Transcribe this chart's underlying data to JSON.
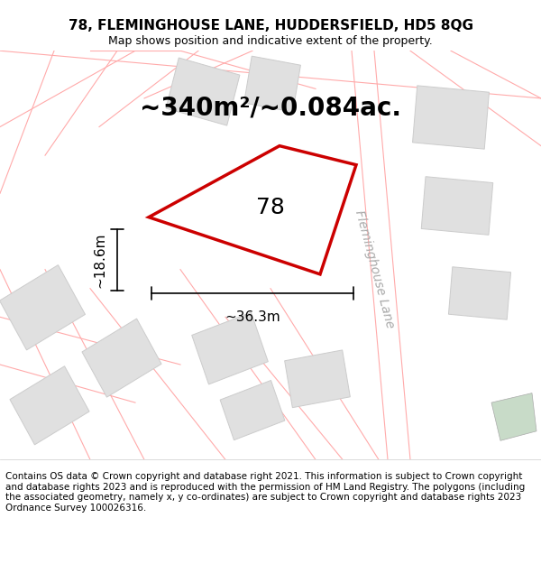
{
  "title_line1": "78, FLEMINGHOUSE LANE, HUDDERSFIELD, HD5 8QG",
  "title_line2": "Map shows position and indicative extent of the property.",
  "area_text": "~340m²/~0.084ac.",
  "label_78": "78",
  "dim_width": "~36.3m",
  "dim_height": "~18.6m",
  "road_label": "Fleminghouse Lane",
  "footer_text": "Contains OS data © Crown copyright and database right 2021. This information is subject to Crown copyright and database rights 2023 and is reproduced with the permission of HM Land Registry. The polygons (including the associated geometry, namely x, y co-ordinates) are subject to Crown copyright and database rights 2023 Ordnance Survey 100026316.",
  "bg_color": "#ffffff",
  "map_bg": "#ffffff",
  "property_fill": "#ffffff",
  "property_edge": "#cc0000",
  "building_fill": "#e0e0e0",
  "building_edge": "#cccccc",
  "road_line_color": "#ffaaaa",
  "dim_line_color": "#000000",
  "footer_bg": "#ffffff",
  "title_fontsize": 11,
  "subtitle_fontsize": 9,
  "area_fontsize": 20,
  "label_fontsize": 18,
  "dim_fontsize": 11,
  "road_fontsize": 10,
  "footer_fontsize": 7.5
}
